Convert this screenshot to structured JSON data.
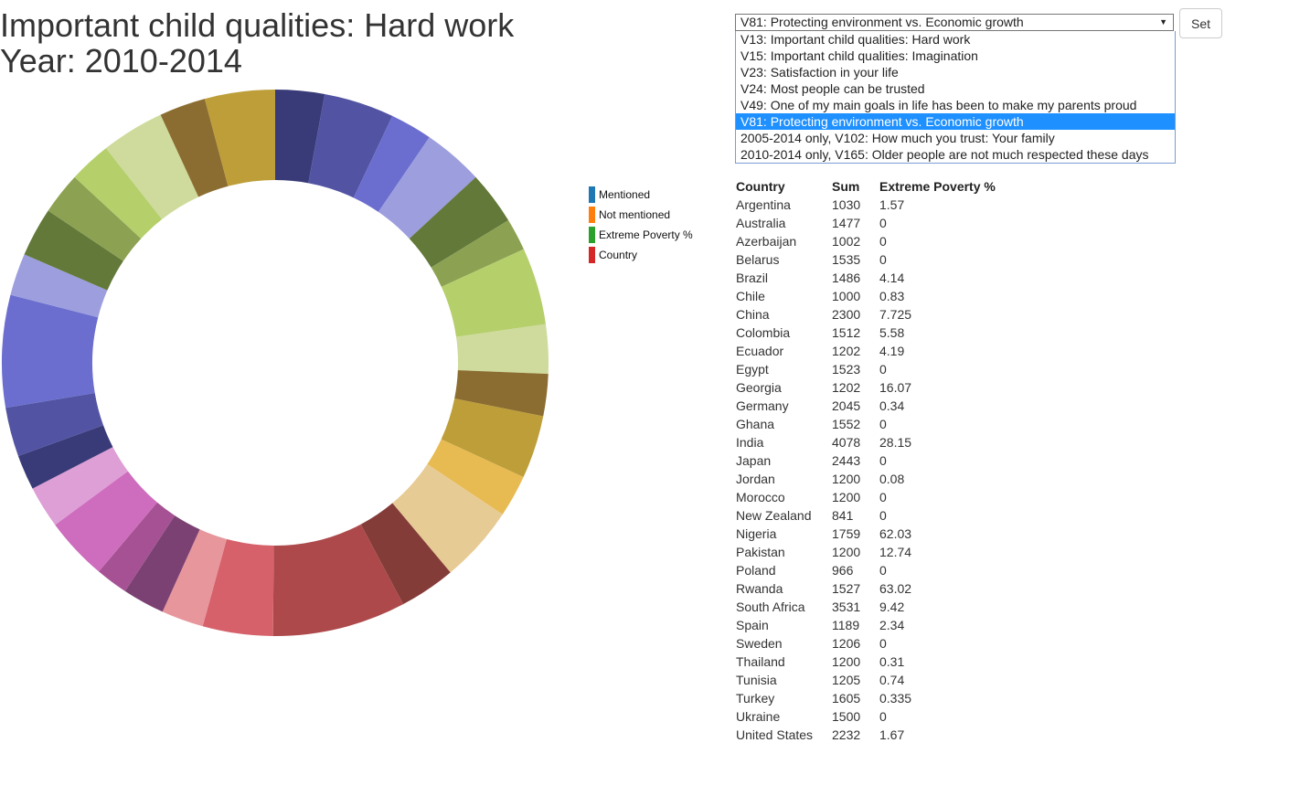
{
  "title": {
    "line1": "Important child qualities: Hard work",
    "line2": "Year: 2010-2014"
  },
  "legend": [
    {
      "label": "Mentioned",
      "color": "#1f77b4"
    },
    {
      "label": "Not mentioned",
      "color": "#ff7f0e"
    },
    {
      "label": "Extreme Poverty %",
      "color": "#2ca02c"
    },
    {
      "label": "Country",
      "color": "#d62728"
    }
  ],
  "controls": {
    "selected": "V81: Protecting environment vs. Economic growth",
    "options": [
      "V13: Important child qualities: Hard work",
      "V15: Important child qualities: Imagination",
      "V23: Satisfaction in your life",
      "V24: Most people can be trusted",
      "V49: One of my main goals in life has been to make my parents proud",
      "V81: Protecting environment vs. Economic growth",
      "2005-2014 only, V102: How much you trust: Your family",
      "2010-2014 only, V165: Older people are not much respected these days"
    ],
    "selected_index": 5,
    "set_label": "Set"
  },
  "table": {
    "headers": [
      "Country",
      "Sum",
      "Extreme Poverty %"
    ],
    "rows": [
      [
        "Argentina",
        "1030",
        "1.57"
      ],
      [
        "Australia",
        "1477",
        "0"
      ],
      [
        "Azerbaijan",
        "1002",
        "0"
      ],
      [
        "Belarus",
        "1535",
        "0"
      ],
      [
        "Brazil",
        "1486",
        "4.14"
      ],
      [
        "Chile",
        "1000",
        "0.83"
      ],
      [
        "China",
        "2300",
        "7.725"
      ],
      [
        "Colombia",
        "1512",
        "5.58"
      ],
      [
        "Ecuador",
        "1202",
        "4.19"
      ],
      [
        "Egypt",
        "1523",
        "0"
      ],
      [
        "Georgia",
        "1202",
        "16.07"
      ],
      [
        "Germany",
        "2045",
        "0.34"
      ],
      [
        "Ghana",
        "1552",
        "0"
      ],
      [
        "India",
        "4078",
        "28.15"
      ],
      [
        "Japan",
        "2443",
        "0"
      ],
      [
        "Jordan",
        "1200",
        "0.08"
      ],
      [
        "Morocco",
        "1200",
        "0"
      ],
      [
        "New Zealand",
        "841",
        "0"
      ],
      [
        "Nigeria",
        "1759",
        "62.03"
      ],
      [
        "Pakistan",
        "1200",
        "12.74"
      ],
      [
        "Poland",
        "966",
        "0"
      ],
      [
        "Rwanda",
        "1527",
        "63.02"
      ],
      [
        "South Africa",
        "3531",
        "9.42"
      ],
      [
        "Spain",
        "1189",
        "2.34"
      ],
      [
        "Sweden",
        "1206",
        "0"
      ],
      [
        "Thailand",
        "1200",
        "0.31"
      ],
      [
        "Tunisia",
        "1205",
        "0.74"
      ],
      [
        "Turkey",
        "1605",
        "0.335"
      ],
      [
        "Ukraine",
        "1500",
        "0"
      ],
      [
        "United States",
        "2232",
        "1.67"
      ]
    ]
  },
  "chart_data": {
    "type": "pie",
    "donut": true,
    "slices": [
      {
        "value": 3.5,
        "color": "#393b79"
      },
      {
        "value": 5.0,
        "color": "#5254a3"
      },
      {
        "value": 3.0,
        "color": "#6b6ecf"
      },
      {
        "value": 4.3,
        "color": "#9c9ede"
      },
      {
        "value": 3.8,
        "color": "#637939"
      },
      {
        "value": 2.3,
        "color": "#8ca252"
      },
      {
        "value": 5.5,
        "color": "#b5cf6b"
      },
      {
        "value": 3.5,
        "color": "#cedb9c"
      },
      {
        "value": 3.0,
        "color": "#8c6d31"
      },
      {
        "value": 4.5,
        "color": "#bd9e39"
      },
      {
        "value": 3.0,
        "color": "#e7ba52"
      },
      {
        "value": 5.5,
        "color": "#e7cb94"
      },
      {
        "value": 4.0,
        "color": "#843c39"
      },
      {
        "value": 9.5,
        "color": "#ad494a"
      },
      {
        "value": 5.0,
        "color": "#d6616b"
      },
      {
        "value": 3.0,
        "color": "#e7969c"
      },
      {
        "value": 3.0,
        "color": "#7b4173"
      },
      {
        "value": 2.3,
        "color": "#a55194"
      },
      {
        "value": 4.5,
        "color": "#ce6dbd"
      },
      {
        "value": 3.0,
        "color": "#de9ed6"
      },
      {
        "value": 2.5,
        "color": "#393b79"
      },
      {
        "value": 3.5,
        "color": "#5254a3"
      },
      {
        "value": 8.0,
        "color": "#6b6ecf"
      },
      {
        "value": 3.0,
        "color": "#9c9ede"
      },
      {
        "value": 3.5,
        "color": "#637939"
      },
      {
        "value": 3.0,
        "color": "#8ca252"
      },
      {
        "value": 3.0,
        "color": "#b5cf6b"
      },
      {
        "value": 4.5,
        "color": "#cedb9c"
      },
      {
        "value": 3.3,
        "color": "#8c6d31"
      },
      {
        "value": 5.0,
        "color": "#bd9e39"
      }
    ]
  }
}
